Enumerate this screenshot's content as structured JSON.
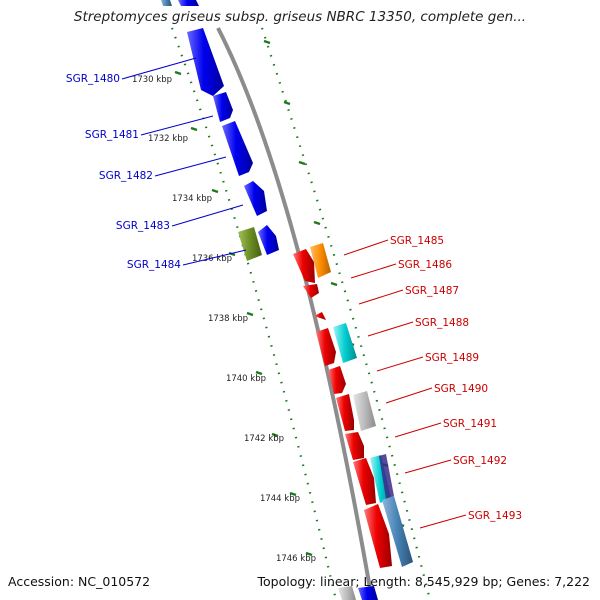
{
  "title": "Streptomyces griseus subsp. griseus NBRC 13350, complete gen...",
  "accession": {
    "label": "Accession: ",
    "value": "NC_010572"
  },
  "summary": {
    "topology_label": "Topology: ",
    "topology": "linear",
    "length_label": "; Length: ",
    "length": "8,545,929 bp",
    "genes_label": "; Genes: ",
    "genes": "7,222"
  },
  "scale_ticks": [
    "1730 kbp",
    "1732 kbp",
    "1734 kbp",
    "1736 kbp",
    "1738 kbp",
    "1740 kbp",
    "1742 kbp",
    "1744 kbp",
    "1746 kbp"
  ],
  "genes_forward": [
    "SGR_1480",
    "SGR_1481",
    "SGR_1482",
    "SGR_1483",
    "SGR_1484"
  ],
  "genes_reverse": [
    "SGR_1485",
    "SGR_1486",
    "SGR_1487",
    "SGR_1488",
    "SGR_1489",
    "SGR_1490",
    "SGR_1491",
    "SGR_1492",
    "SGR_1493"
  ],
  "colors": {
    "forward_label": "#0000cc",
    "reverse_label": "#cc0000",
    "forward_gene": "#0000ee",
    "reverse_gene": "#ee0000",
    "olive_gene": "#6b8e23",
    "orange_gene": "#ff8c00",
    "cyan_gene": "#00ced1",
    "gray_gene": "#bbbbbb",
    "steel_gene": "#4682b4",
    "backbone": "#8c8c8c",
    "tick_green": "#1f7a1f"
  }
}
